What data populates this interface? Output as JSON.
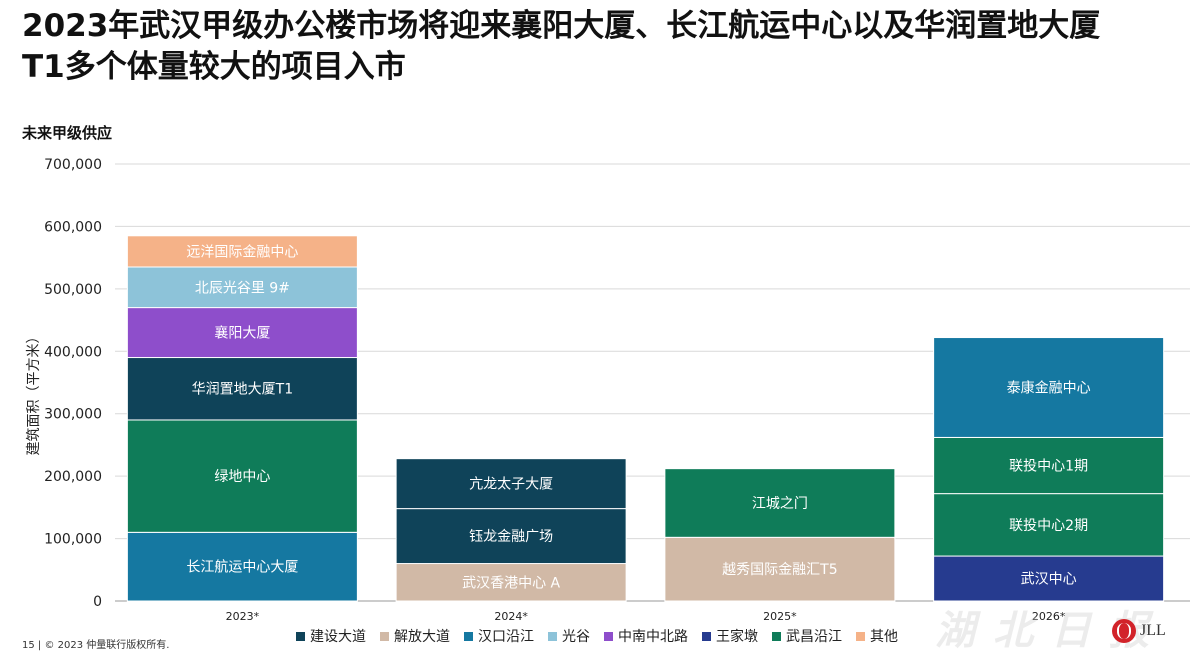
{
  "title": "2023年武汉甲级办公楼市场将迎来襄阳大厦、长江航运中心以及华润置地大厦T1多个体量较大的项目入市",
  "subtitle": "未来甲级供应",
  "footer": "15  |  © 2023 仲量联行版权所有.",
  "logo_text": "JLL",
  "watermark": "湖北日报",
  "chart_data": {
    "type": "bar",
    "stacked": true,
    "ylabel": "建筑面积（平方米）",
    "ylim": [
      0,
      700000
    ],
    "yticks": [
      0,
      100000,
      200000,
      300000,
      400000,
      500000,
      600000,
      700000
    ],
    "ytick_labels": [
      "0",
      "100,000",
      "200,000",
      "300,000",
      "400,000",
      "500,000",
      "600,000",
      "700,000"
    ],
    "grid": true,
    "legend_position": "bottom",
    "categories": [
      "2023*",
      "2024*",
      "2025*",
      "2026*"
    ],
    "legend": [
      {
        "name": "建设大道",
        "color": "#0f4359"
      },
      {
        "name": "解放大道",
        "color": "#d1b9a6"
      },
      {
        "name": "汉口沿江",
        "color": "#1578a1"
      },
      {
        "name": "光谷",
        "color": "#8dc3d9"
      },
      {
        "name": "中南中北路",
        "color": "#8e4ecb"
      },
      {
        "name": "王家墩",
        "color": "#263b8f"
      },
      {
        "name": "武昌沿江",
        "color": "#0f7c59"
      },
      {
        "name": "其他",
        "color": "#f5b288"
      }
    ],
    "bars": [
      {
        "category": "2023*",
        "segments": [
          {
            "label": "长江航运中心大厦",
            "value": 110000,
            "color": "#1578a1"
          },
          {
            "label": "绿地中心",
            "value": 180000,
            "color": "#0f7c59"
          },
          {
            "label": "华润置地大厦T1",
            "value": 100000,
            "color": "#0f4359"
          },
          {
            "label": "襄阳大厦",
            "value": 80000,
            "color": "#8e4ecb"
          },
          {
            "label": "北辰光谷里 9#",
            "value": 65000,
            "color": "#8dc3d9"
          },
          {
            "label": "远洋国际金融中心",
            "value": 50000,
            "color": "#f5b288"
          }
        ]
      },
      {
        "category": "2024*",
        "segments": [
          {
            "label": "武汉香港中心 A",
            "value": 60000,
            "color": "#d1b9a6"
          },
          {
            "label": "钰龙金融广场",
            "value": 88000,
            "color": "#0f4359"
          },
          {
            "label": "亢龙太子大厦",
            "value": 80000,
            "color": "#0f4359"
          }
        ]
      },
      {
        "category": "2025*",
        "segments": [
          {
            "label": "越秀国际金融汇T5",
            "value": 102000,
            "color": "#d1b9a6"
          },
          {
            "label": "江城之门",
            "value": 110000,
            "color": "#0f7c59"
          }
        ]
      },
      {
        "category": "2026*",
        "segments": [
          {
            "label": "武汉中心",
            "value": 72000,
            "color": "#263b8f"
          },
          {
            "label": "联投中心2期",
            "value": 100000,
            "color": "#0f7c59"
          },
          {
            "label": "联投中心1期",
            "value": 90000,
            "color": "#0f7c59"
          },
          {
            "label": "泰康金融中心",
            "value": 160000,
            "color": "#1578a1"
          }
        ]
      }
    ]
  }
}
